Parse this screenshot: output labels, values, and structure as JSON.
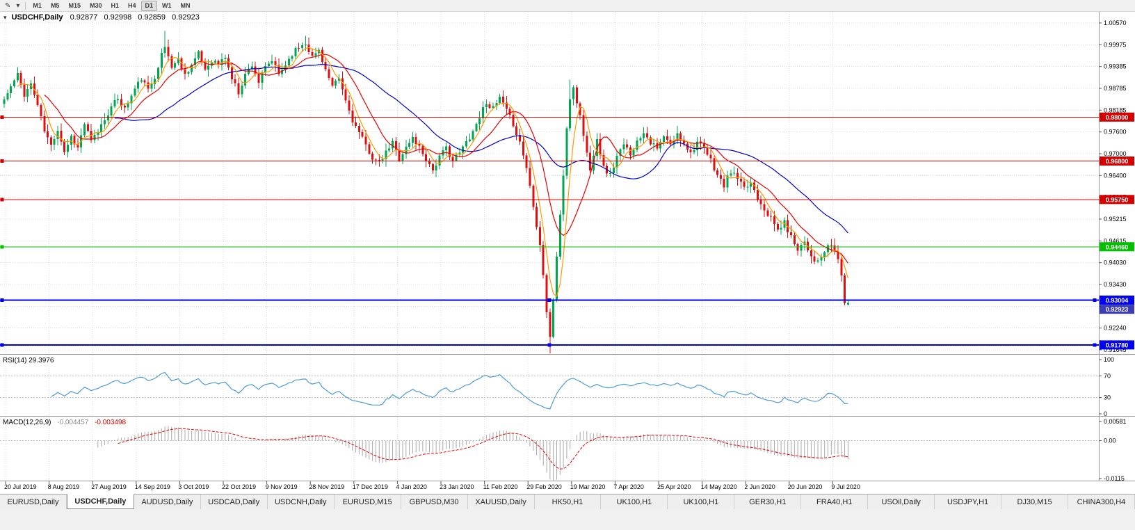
{
  "toolbar": {
    "timeframes": [
      {
        "label": "M1",
        "active": false
      },
      {
        "label": "M5",
        "active": false
      },
      {
        "label": "M15",
        "active": false
      },
      {
        "label": "M30",
        "active": false
      },
      {
        "label": "H1",
        "active": false
      },
      {
        "label": "H4",
        "active": false
      },
      {
        "label": "D1",
        "active": true
      },
      {
        "label": "W1",
        "active": false
      },
      {
        "label": "MN",
        "active": false
      }
    ]
  },
  "chart": {
    "title": {
      "symbol": "USDCHF,Daily",
      "open": "0.92877",
      "high": "0.92998",
      "low": "0.92859",
      "close": "0.92923"
    },
    "price_axis_labels": [
      "1.00570",
      "0.99975",
      "0.99385",
      "0.98785",
      "0.98185",
      "0.97600",
      "0.97000",
      "0.96400",
      "0.95805",
      "0.95215",
      "0.94615",
      "0.94030",
      "0.93430",
      "0.92840",
      "0.92240",
      "0.91645"
    ],
    "dates": [
      "20 Jul 2019",
      "8 Aug 2019",
      "27 Aug 2019",
      "14 Sep 2019",
      "3 Oct 2019",
      "22 Oct 2019",
      "9 Nov 2019",
      "28 Nov 2019",
      "17 Dec 2019",
      "4 Jan 2020",
      "23 Jan 2020",
      "11 Feb 2020",
      "29 Feb 2020",
      "19 Mar 2020",
      "7 Apr 2020",
      "25 Apr 2020",
      "14 May 2020",
      "2 Jun 2020",
      "20 Jun 2020",
      "9 Jul 2020"
    ],
    "colors": {
      "up": "#00A650",
      "down": "#DC1010",
      "ma_fast": "#FF9900",
      "ma_mid": "#E80000",
      "ma_slow": "#0000C8",
      "grid": "#DBDBDB",
      "levels": "#BBBBBB",
      "rsi_line": "#4E9BD4",
      "macd_hist": "#A8A8A8",
      "macd_signal": "#E80000",
      "separator": "#9A9A9A",
      "axis_text": "#000000"
    }
  },
  "chart_data": {
    "type": "candlestick",
    "symbol": "USDCHF",
    "timeframe": "Daily",
    "title": "USDCHF,Daily 0.92877 0.92998 0.92859 0.92923",
    "x_range_dates": [
      "20 Jul 2019",
      "9 Jul 2020"
    ],
    "y_axis_top": 1.0057,
    "y_axis_bottom": 0.91645,
    "candle_count": 253,
    "seed": 11,
    "noise": 0.0016,
    "wick": 0.0017,
    "close_anchors": [
      [
        0,
        0.9848
      ],
      [
        2,
        0.9882
      ],
      [
        4,
        0.9915
      ],
      [
        6,
        0.9862
      ],
      [
        8,
        0.989
      ],
      [
        10,
        0.9833
      ],
      [
        12,
        0.9762
      ],
      [
        14,
        0.9722
      ],
      [
        16,
        0.9768
      ],
      [
        18,
        0.9706
      ],
      [
        20,
        0.9748
      ],
      [
        22,
        0.9716
      ],
      [
        24,
        0.9782
      ],
      [
        26,
        0.9732
      ],
      [
        28,
        0.9762
      ],
      [
        31,
        0.9812
      ],
      [
        34,
        0.9852
      ],
      [
        36,
        0.9822
      ],
      [
        39,
        0.9876
      ],
      [
        41,
        0.9906
      ],
      [
        43,
        0.9872
      ],
      [
        45,
        0.9912
      ],
      [
        47,
        0.997
      ],
      [
        48,
        0.9992
      ],
      [
        50,
        0.9938
      ],
      [
        52,
        0.9956
      ],
      [
        54,
        0.9916
      ],
      [
        56,
        0.9944
      ],
      [
        58,
        0.9972
      ],
      [
        60,
        0.993
      ],
      [
        62,
        0.9956
      ],
      [
        64,
        0.9944
      ],
      [
        66,
        0.9964
      ],
      [
        68,
        0.9906
      ],
      [
        70,
        0.9868
      ],
      [
        72,
        0.9916
      ],
      [
        74,
        0.9944
      ],
      [
        76,
        0.9896
      ],
      [
        78,
        0.9934
      ],
      [
        80,
        0.9954
      ],
      [
        82,
        0.9916
      ],
      [
        84,
        0.9944
      ],
      [
        86,
        0.9974
      ],
      [
        88,
        0.9992
      ],
      [
        90,
        1.0004
      ],
      [
        92,
        0.9964
      ],
      [
        94,
        0.9984
      ],
      [
        96,
        0.993
      ],
      [
        98,
        0.988
      ],
      [
        100,
        0.9904
      ],
      [
        102,
        0.9844
      ],
      [
        104,
        0.9792
      ],
      [
        106,
        0.9756
      ],
      [
        108,
        0.9722
      ],
      [
        110,
        0.969
      ],
      [
        112,
        0.9672
      ],
      [
        114,
        0.9702
      ],
      [
        116,
        0.973
      ],
      [
        118,
        0.9688
      ],
      [
        120,
        0.9716
      ],
      [
        122,
        0.9744
      ],
      [
        124,
        0.9718
      ],
      [
        126,
        0.9686
      ],
      [
        128,
        0.9656
      ],
      [
        130,
        0.969
      ],
      [
        132,
        0.9716
      ],
      [
        134,
        0.9682
      ],
      [
        136,
        0.9702
      ],
      [
        138,
        0.9732
      ],
      [
        140,
        0.9762
      ],
      [
        142,
        0.9802
      ],
      [
        144,
        0.9842
      ],
      [
        146,
        0.9822
      ],
      [
        148,
        0.9852
      ],
      [
        150,
        0.9816
      ],
      [
        152,
        0.9782
      ],
      [
        154,
        0.9732
      ],
      [
        156,
        0.9662
      ],
      [
        158,
        0.9562
      ],
      [
        160,
        0.9452
      ],
      [
        161,
        0.9372
      ],
      [
        162,
        0.9268
      ],
      [
        163,
        0.9196
      ],
      [
        164,
        0.9302
      ],
      [
        165,
        0.9422
      ],
      [
        166,
        0.9532
      ],
      [
        167,
        0.9642
      ],
      [
        168,
        0.9762
      ],
      [
        169,
        0.9852
      ],
      [
        170,
        0.9882
      ],
      [
        171,
        0.9842
      ],
      [
        172,
        0.9802
      ],
      [
        173,
        0.9752
      ],
      [
        174,
        0.9702
      ],
      [
        175,
        0.9652
      ],
      [
        176,
        0.9702
      ],
      [
        177,
        0.9746
      ],
      [
        178,
        0.9702
      ],
      [
        179,
        0.9662
      ],
      [
        181,
        0.9642
      ],
      [
        183,
        0.9692
      ],
      [
        185,
        0.9722
      ],
      [
        187,
        0.9702
      ],
      [
        189,
        0.9732
      ],
      [
        191,
        0.9762
      ],
      [
        193,
        0.9732
      ],
      [
        195,
        0.9712
      ],
      [
        197,
        0.9746
      ],
      [
        199,
        0.9722
      ],
      [
        201,
        0.9752
      ],
      [
        203,
        0.9732
      ],
      [
        205,
        0.9702
      ],
      [
        207,
        0.9732
      ],
      [
        209,
        0.9712
      ],
      [
        211,
        0.9682
      ],
      [
        213,
        0.9642
      ],
      [
        215,
        0.9612
      ],
      [
        217,
        0.9652
      ],
      [
        219,
        0.9632
      ],
      [
        221,
        0.9602
      ],
      [
        223,
        0.9622
      ],
      [
        225,
        0.9582
      ],
      [
        227,
        0.9552
      ],
      [
        229,
        0.9522
      ],
      [
        231,
        0.9492
      ],
      [
        233,
        0.9512
      ],
      [
        235,
        0.9472
      ],
      [
        237,
        0.9442
      ],
      [
        239,
        0.9462
      ],
      [
        241,
        0.9422
      ],
      [
        243,
        0.9402
      ],
      [
        245,
        0.9432
      ],
      [
        247,
        0.9452
      ],
      [
        249,
        0.9412
      ],
      [
        250,
        0.9372
      ],
      [
        251,
        0.9292
      ],
      [
        252,
        0.92923
      ]
    ],
    "overrides": {
      "48": {
        "high": 1.0035
      },
      "90": {
        "high": 1.0022
      },
      "163": {
        "low": 0.9155
      },
      "169": {
        "high": 0.9902
      },
      "251": {
        "low": 0.9286
      },
      "252": {
        "open": 0.92877,
        "high": 0.92998,
        "low": 0.92859,
        "close": 0.92923
      }
    },
    "last_candle": {
      "open": 0.92877,
      "high": 0.92998,
      "low": 0.92859,
      "close": 0.92923
    },
    "moving_averages": [
      {
        "period": 34,
        "color_key": "ma_slow"
      },
      {
        "period": 13,
        "color_key": "ma_mid"
      },
      {
        "period": 5,
        "color_key": "ma_fast"
      }
    ],
    "horizontal_lines": [
      {
        "price": 0.98,
        "label": "0.98000",
        "color": "#D40000",
        "width": 1,
        "handles": false
      },
      {
        "price": 0.968,
        "label": "0.96800",
        "color": "#D40000",
        "width": 1,
        "handles": false
      },
      {
        "price": 0.9575,
        "label": "0.95750",
        "color": "#D40000",
        "width": 1,
        "handles": false
      },
      {
        "price": 0.9446,
        "label": "0.94460",
        "color": "#00C000",
        "width": 1,
        "handles": false
      },
      {
        "price": 0.93004,
        "label": "0.93004",
        "color": "#0000F0",
        "width": 2,
        "handles": true
      },
      {
        "price": 0.9178,
        "label": "0.91780",
        "color": "#0000F0",
        "width": 2,
        "handles": true
      }
    ],
    "current_price": {
      "value": "0.92923",
      "price": 0.92923,
      "box_color": "#3C3CB4"
    }
  },
  "rsi": {
    "header": "RSI(14) 29.3976",
    "period": 14,
    "current": 29.3976,
    "levels": [
      {
        "label": "100",
        "v": 100
      },
      {
        "label": "70",
        "v": 70
      },
      {
        "label": "30",
        "v": 30
      },
      {
        "label": "0",
        "v": 0
      }
    ],
    "dashed_levels": [
      70,
      30
    ]
  },
  "macd": {
    "name": "MACD(12,26,9)",
    "value_main": "-0.004457",
    "value_signal": "-0.003498",
    "fast": 12,
    "slow": 26,
    "signal_period": 9,
    "axis": [
      {
        "label": "0.00581",
        "v": 0.00581
      },
      {
        "label": "0.00",
        "v": 0
      },
      {
        "label": "-0.0115",
        "v": -0.0115
      }
    ],
    "range": {
      "max": 0.00581,
      "min": -0.0115
    }
  },
  "tabs": {
    "items": [
      {
        "label": "EURUSD,Daily",
        "active": false
      },
      {
        "label": "USDCHF,Daily",
        "active": true
      },
      {
        "label": "AUDUSD,Daily",
        "active": false
      },
      {
        "label": "USDCAD,Daily",
        "active": false
      },
      {
        "label": "USDCNH,Daily",
        "active": false
      },
      {
        "label": "EURUSD,M15",
        "active": false
      },
      {
        "label": "GBPUSD,M30",
        "active": false
      },
      {
        "label": "XAUUSD,Daily",
        "active": false
      },
      {
        "label": "HK50,H1",
        "active": false
      },
      {
        "label": "UK100,H1",
        "active": false
      },
      {
        "label": "UK100,H1",
        "active": false
      },
      {
        "label": "GER30,H1",
        "active": false
      },
      {
        "label": "FRA40,H1",
        "active": false
      },
      {
        "label": "USOil,Daily",
        "active": false
      },
      {
        "label": "USDJPY,H1",
        "active": false
      },
      {
        "label": "DJ30,M15",
        "active": false
      },
      {
        "label": "CHINA300,H4",
        "active": false
      }
    ]
  }
}
